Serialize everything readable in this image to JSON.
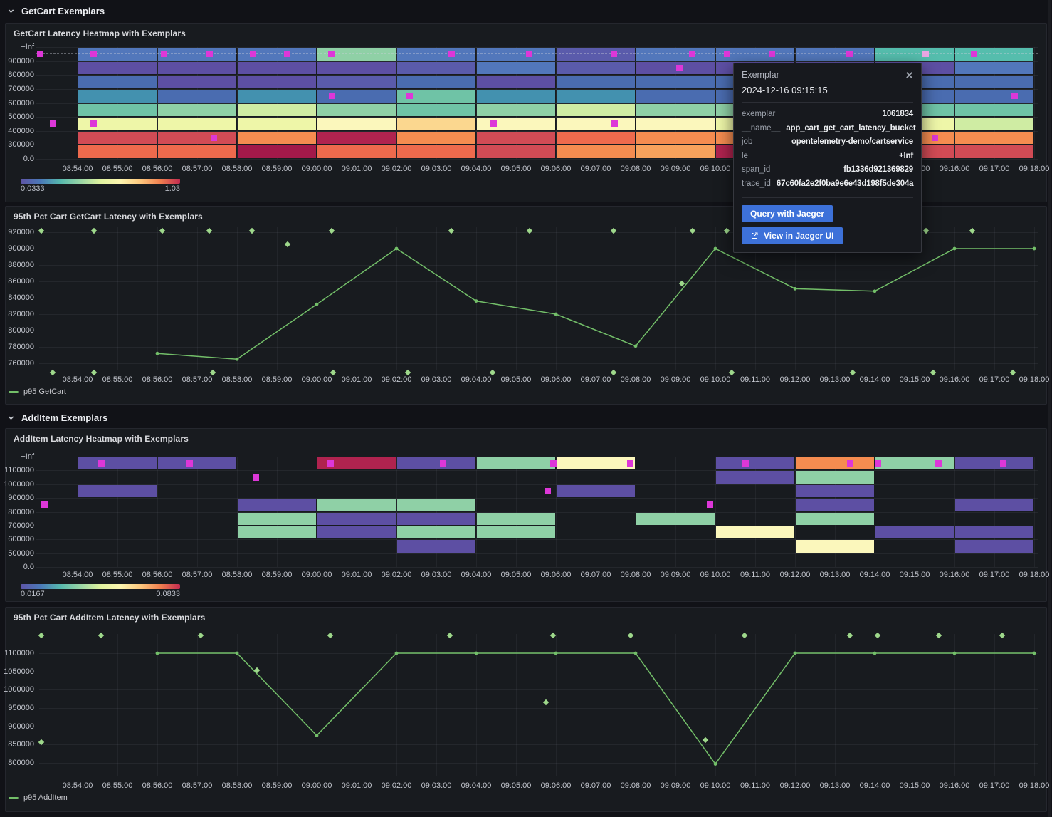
{
  "page": {
    "bg": "#111217"
  },
  "sections": [
    {
      "title": "GetCart Exemplars"
    },
    {
      "title": "AddItem Exemplars"
    }
  ],
  "x_ticks": [
    "08:54:00",
    "08:55:00",
    "08:56:00",
    "08:57:00",
    "08:58:00",
    "08:59:00",
    "09:00:00",
    "09:01:00",
    "09:02:00",
    "09:03:00",
    "09:04:00",
    "09:05:00",
    "09:06:00",
    "09:07:00",
    "09:08:00",
    "09:09:00",
    "09:10:00",
    "09:11:00",
    "09:12:00",
    "09:13:00",
    "09:14:00",
    "09:15:00",
    "09:16:00",
    "09:17:00",
    "09:18:00"
  ],
  "palette": {
    "b1": "#5277bb",
    "b2": "#4a6cb0",
    "pu": "#5d4fa3",
    "ind": "#5a5bab",
    "tl": "#4391af",
    "tl2": "#55bdad",
    "sf": "#6fc3a6",
    "gn": "#8fd0a6",
    "yg": "#cfeca3",
    "py": "#eef6a8",
    "cr": "#fbf7bc",
    "pe": "#fbd78f",
    "or": "#f58c50",
    "or2": "#f8a25c",
    "oR": "#ee6a4d",
    "rd": "#d14b55",
    "dr": "#b0234f",
    "dr2": "#a3194a",
    "exemplar": "#dd37d8",
    "exemplar_hl": "#eba7e4",
    "line": "#73bf69",
    "diamond": "#9ed88b",
    "legend_gradient": [
      "#5e54a6",
      "#4a79b8",
      "#56b8ad",
      "#98d5a5",
      "#e0f39f",
      "#fdf6b0",
      "#fdc87e",
      "#f0804f",
      "#c22a50"
    ]
  },
  "charts": {
    "getcart_heatmap": {
      "type": "heatmap",
      "title": "GetCart Latency Heatmap with Exemplars",
      "y_ticks": [
        "+Inf",
        "900000",
        "800000",
        "700000",
        "600000",
        "500000",
        "400000",
        "300000",
        "0.0"
      ],
      "col_start": "08:54:00",
      "col_minutes": 2,
      "cells": [
        [
          "b1",
          "pu",
          "b2",
          "tl",
          "sf",
          "py",
          "rd",
          "oR"
        ],
        [
          "b1",
          "pu",
          "pu",
          "b2",
          "gn",
          "py",
          "rd",
          "oR"
        ],
        [
          "b1",
          "pu",
          "pu",
          "tl",
          "yg",
          "py",
          "or",
          "dr2"
        ],
        [
          "gn",
          "pu",
          "ind",
          "b2",
          "gn",
          "cr",
          "dr",
          "oR"
        ],
        [
          "b1",
          "ind",
          "b2",
          "sf",
          "sf",
          "pe",
          "or",
          "oR"
        ],
        [
          "b1",
          "b1",
          "pu",
          "tl",
          "gn",
          "cr",
          "rd",
          "rd"
        ],
        [
          "ind",
          "ind",
          "b2",
          "tl",
          "yg",
          "cr",
          "oR",
          "or"
        ],
        [
          "b1",
          "pu",
          "b2",
          "b2",
          "gn",
          "cr",
          "or",
          "or2"
        ],
        [
          "b1",
          "pu",
          "b2",
          "b2",
          "gn",
          "py",
          "or",
          "dr"
        ],
        [
          "b1",
          "pu",
          "b2",
          "b2",
          "gn",
          "py",
          "or",
          "rd"
        ],
        [
          "tl2",
          "pu",
          "b2",
          "b2",
          "sf",
          "py",
          "or",
          "rd"
        ],
        [
          "tl2",
          "b1",
          "b2",
          "b2",
          "sf",
          "yg",
          "or",
          "rd"
        ]
      ],
      "exemplars": [
        {
          "time": "08:53:04",
          "row": 0
        },
        {
          "time": "08:54:24",
          "row": 0
        },
        {
          "time": "08:56:10",
          "row": 0
        },
        {
          "time": "08:57:19",
          "row": 0
        },
        {
          "time": "08:58:24",
          "row": 0
        },
        {
          "time": "08:59:16",
          "row": 0
        },
        {
          "time": "09:00:22",
          "row": 0
        },
        {
          "time": "09:03:23",
          "row": 0
        },
        {
          "time": "09:05:20",
          "row": 0
        },
        {
          "time": "09:07:27",
          "row": 0
        },
        {
          "time": "09:09:25",
          "row": 0
        },
        {
          "time": "09:10:18",
          "row": 0
        },
        {
          "time": "09:11:25",
          "row": 0
        },
        {
          "time": "09:13:22",
          "row": 0
        },
        {
          "time": "09:15:17",
          "row": 0,
          "highlight": true
        },
        {
          "time": "09:16:29",
          "row": 0
        },
        {
          "time": "09:09:06",
          "row": 1
        },
        {
          "time": "09:00:23",
          "row": 3
        },
        {
          "time": "09:02:20",
          "row": 3
        },
        {
          "time": "09:17:30",
          "row": 3
        },
        {
          "time": "08:53:23",
          "row": 5
        },
        {
          "time": "08:54:24",
          "row": 5
        },
        {
          "time": "09:04:26",
          "row": 5
        },
        {
          "time": "09:07:28",
          "row": 5
        },
        {
          "time": "08:57:25",
          "row": 6
        },
        {
          "time": "09:15:31",
          "row": 6
        }
      ],
      "legend": {
        "min": "0.0333",
        "max": "1.03"
      }
    },
    "getcart_line": {
      "type": "line",
      "title": "95th Pct Cart GetCart Latency with Exemplars",
      "series_label": "p95 GetCart",
      "y_ticks": [
        920000,
        900000,
        880000,
        860000,
        840000,
        820000,
        800000,
        780000,
        760000
      ],
      "points": [
        {
          "time": "08:56:00",
          "value": 772000
        },
        {
          "time": "08:58:00",
          "value": 765000
        },
        {
          "time": "09:00:00",
          "value": 832000
        },
        {
          "time": "09:02:00",
          "value": 900000
        },
        {
          "time": "09:04:00",
          "value": 836000
        },
        {
          "time": "09:06:00",
          "value": 820000
        },
        {
          "time": "09:08:00",
          "value": 781000
        },
        {
          "time": "09:10:00",
          "value": 900000
        },
        {
          "time": "09:12:00",
          "value": 851000
        },
        {
          "time": "09:14:00",
          "value": 848000
        },
        {
          "time": "09:16:00",
          "value": 900000
        },
        {
          "time": "09:18:00",
          "value": 900000
        }
      ],
      "exemplars": [
        {
          "time": "08:53:05",
          "value": 921800
        },
        {
          "time": "08:54:25",
          "value": 921800
        },
        {
          "time": "08:56:08",
          "value": 921800
        },
        {
          "time": "08:57:18",
          "value": 921800
        },
        {
          "time": "08:58:23",
          "value": 921800
        },
        {
          "time": "09:00:22",
          "value": 921800
        },
        {
          "time": "09:03:22",
          "value": 921800
        },
        {
          "time": "09:05:20",
          "value": 921800
        },
        {
          "time": "09:07:27",
          "value": 921800
        },
        {
          "time": "09:09:26",
          "value": 921800
        },
        {
          "time": "09:10:17",
          "value": 921800
        },
        {
          "time": "09:15:17",
          "value": 921800
        },
        {
          "time": "09:16:27",
          "value": 921800
        },
        {
          "time": "08:59:16",
          "value": 905000
        },
        {
          "time": "09:09:10",
          "value": 857000
        },
        {
          "time": "08:53:22",
          "value": 748500
        },
        {
          "time": "08:54:25",
          "value": 748500
        },
        {
          "time": "08:57:24",
          "value": 748500
        },
        {
          "time": "09:00:25",
          "value": 748500
        },
        {
          "time": "09:02:17",
          "value": 748500
        },
        {
          "time": "09:04:25",
          "value": 748500
        },
        {
          "time": "09:07:27",
          "value": 748500
        },
        {
          "time": "09:10:25",
          "value": 748500
        },
        {
          "time": "09:13:27",
          "value": 748500
        },
        {
          "time": "09:15:28",
          "value": 748500
        },
        {
          "time": "09:17:28",
          "value": 748500
        }
      ]
    },
    "additem_heatmap": {
      "type": "heatmap",
      "title": "AddItem Latency Heatmap with Exemplars",
      "y_ticks": [
        "+Inf",
        "1100000",
        "1000000",
        "900000",
        "800000",
        "700000",
        "600000",
        "500000",
        "0.0"
      ],
      "col_start": "08:54:00",
      "col_minutes": 2,
      "cells": [
        [
          "pu",
          null,
          "pu",
          null,
          null,
          null,
          null,
          null
        ],
        [
          "pu",
          null,
          null,
          null,
          null,
          null,
          null,
          null
        ],
        [
          null,
          null,
          null,
          "pu",
          "gn",
          "gn",
          null,
          null
        ],
        [
          "dr",
          null,
          null,
          "gn",
          "pu",
          "pu",
          null,
          null
        ],
        [
          "pu",
          null,
          null,
          "gn",
          "pu",
          "gn",
          "pu",
          null
        ],
        [
          "gn",
          null,
          null,
          null,
          "gn",
          "gn",
          null,
          null
        ],
        [
          "cr",
          null,
          "pu",
          null,
          null,
          null,
          null,
          null
        ],
        [
          null,
          null,
          null,
          null,
          "gn",
          null,
          null,
          null
        ],
        [
          "pu",
          "pu",
          null,
          null,
          null,
          "cr",
          null,
          null
        ],
        [
          "or",
          "gn",
          "pu",
          "pu",
          "gn",
          null,
          "cr",
          null
        ],
        [
          "gn",
          null,
          null,
          null,
          null,
          "pu",
          null,
          null
        ],
        [
          "pu",
          null,
          null,
          "pu",
          null,
          "pu",
          "pu",
          null
        ]
      ],
      "exemplars": [
        {
          "time": "08:53:10",
          "row": 3
        },
        {
          "time": "08:54:36",
          "row": 0
        },
        {
          "time": "08:56:49",
          "row": 0
        },
        {
          "time": "08:58:28",
          "row": 1
        },
        {
          "time": "09:00:21",
          "row": 0
        },
        {
          "time": "09:03:10",
          "row": 0
        },
        {
          "time": "09:05:48",
          "row": 2
        },
        {
          "time": "09:05:56",
          "row": 0
        },
        {
          "time": "09:07:52",
          "row": 0
        },
        {
          "time": "09:09:52",
          "row": 3
        },
        {
          "time": "09:10:45",
          "row": 0
        },
        {
          "time": "09:13:23",
          "row": 0
        },
        {
          "time": "09:14:05",
          "row": 0
        },
        {
          "time": "09:15:36",
          "row": 0
        },
        {
          "time": "09:17:13",
          "row": 0
        }
      ],
      "legend": {
        "min": "0.0167",
        "max": "0.0833"
      }
    },
    "additem_line": {
      "type": "line",
      "title": "95th Pct Cart AddItem Latency with Exemplars",
      "series_label": "p95 AddItem",
      "y_ticks": [
        1100000,
        1050000,
        1000000,
        950000,
        900000,
        850000,
        800000
      ],
      "points": [
        {
          "time": "08:56:00",
          "value": 1100000
        },
        {
          "time": "08:58:00",
          "value": 1100000
        },
        {
          "time": "09:00:00",
          "value": 875000
        },
        {
          "time": "09:02:00",
          "value": 1100000
        },
        {
          "time": "09:04:00",
          "value": 1100000
        },
        {
          "time": "09:06:00",
          "value": 1100000
        },
        {
          "time": "09:08:00",
          "value": 1100000
        },
        {
          "time": "09:10:00",
          "value": 797000
        },
        {
          "time": "09:12:00",
          "value": 1100000
        },
        {
          "time": "09:14:00",
          "value": 1100000
        },
        {
          "time": "09:16:00",
          "value": 1100000
        },
        {
          "time": "09:18:00",
          "value": 1100000
        }
      ],
      "exemplars": [
        {
          "time": "08:53:05",
          "value": 1148000
        },
        {
          "time": "08:54:35",
          "value": 1148000
        },
        {
          "time": "08:57:05",
          "value": 1148000
        },
        {
          "time": "09:00:20",
          "value": 1148000
        },
        {
          "time": "09:03:20",
          "value": 1148000
        },
        {
          "time": "09:05:56",
          "value": 1148000
        },
        {
          "time": "09:07:52",
          "value": 1148000
        },
        {
          "time": "09:10:44",
          "value": 1148000
        },
        {
          "time": "09:13:23",
          "value": 1148000
        },
        {
          "time": "09:14:04",
          "value": 1148000
        },
        {
          "time": "09:15:36",
          "value": 1148000
        },
        {
          "time": "09:17:12",
          "value": 1148000
        },
        {
          "time": "08:53:05",
          "value": 857000
        },
        {
          "time": "08:58:30",
          "value": 1053000
        },
        {
          "time": "09:05:45",
          "value": 966000
        },
        {
          "time": "09:09:45",
          "value": 862000
        }
      ]
    }
  },
  "tooltip": {
    "title": "Exemplar",
    "time": "2024-12-16 09:15:15",
    "fields": [
      {
        "key": "exemplar",
        "value": "1061834"
      },
      {
        "key": "__name__",
        "value": "app_cart_get_cart_latency_bucket"
      },
      {
        "key": "job",
        "value": "opentelemetry-demo/cartservice"
      },
      {
        "key": "le",
        "value": "+Inf"
      },
      {
        "key": "span_id",
        "value": "fb1336d921369829"
      },
      {
        "key": "trace_id",
        "value": "67c60fa2e2f0ba9e6e43d198f5de304a"
      }
    ],
    "buttons": [
      {
        "label": "Query with Jaeger",
        "icon": null
      },
      {
        "label": "View in Jaeger UI",
        "icon": "external-link"
      }
    ]
  }
}
